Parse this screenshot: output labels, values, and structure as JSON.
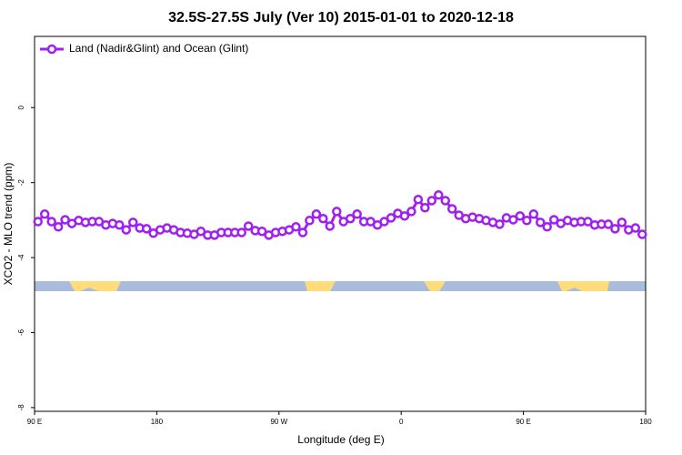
{
  "chart_data": {
    "type": "line",
    "title": "32.5S-27.5S July (Ver 10)   2015-01-01 to 2020-12-18",
    "x_label": "Longitude (deg E)",
    "y_label": "XCO2 - MLO trend (ppm)",
    "x": [
      92.5,
      97.5,
      102.5,
      107.5,
      112.5,
      117.5,
      122.5,
      127.5,
      132.5,
      137.5,
      142.5,
      147.5,
      152.5,
      157.5,
      162.5,
      167.5,
      172.5,
      177.5,
      182.5,
      187.5,
      192.5,
      197.5,
      202.5,
      207.5,
      212.5,
      217.5,
      222.5,
      227.5,
      232.5,
      237.5,
      242.5,
      247.5,
      252.5,
      257.5,
      262.5,
      267.5,
      272.5,
      277.5,
      282.5,
      287.5,
      292.5,
      297.5,
      302.5,
      307.5,
      312.5,
      317.5,
      322.5,
      327.5,
      332.5,
      337.5,
      342.5,
      347.5,
      352.5,
      357.5,
      362.5,
      367.5,
      372.5,
      377.5,
      382.5,
      387.5,
      392.5,
      397.5,
      402.5,
      407.5,
      412.5,
      417.5,
      422.5,
      427.5,
      432.5,
      437.5,
      442.5,
      447.5,
      452.5,
      457.5,
      462.5,
      467.5,
      472.5,
      477.5,
      482.5,
      487.5,
      492.5,
      497.5,
      502.5,
      507.5,
      512.5,
      517.5,
      522.5,
      527.5,
      532.5,
      537.5
    ],
    "series": [
      {
        "name": "Land (Nadir&Glint) and Ocean (Glint)",
        "color": "#a020f0",
        "values": [
          -3.04,
          -2.84,
          -3.04,
          -3.18,
          -2.99,
          -3.09,
          -3.01,
          -3.06,
          -3.04,
          -3.04,
          -3.13,
          -3.09,
          -3.13,
          -3.26,
          -3.06,
          -3.21,
          -3.23,
          -3.35,
          -3.26,
          -3.21,
          -3.26,
          -3.33,
          -3.35,
          -3.38,
          -3.3,
          -3.4,
          -3.4,
          -3.33,
          -3.33,
          -3.33,
          -3.33,
          -3.16,
          -3.28,
          -3.3,
          -3.4,
          -3.33,
          -3.3,
          -3.26,
          -3.18,
          -3.33,
          -3.01,
          -2.84,
          -2.96,
          -3.16,
          -2.77,
          -3.04,
          -2.96,
          -2.84,
          -3.04,
          -3.04,
          -3.13,
          -3.04,
          -2.94,
          -2.82,
          -2.89,
          -2.77,
          -2.45,
          -2.67,
          -2.48,
          -2.33,
          -2.48,
          -2.7,
          -2.87,
          -2.96,
          -2.92,
          -2.96,
          -3.01,
          -3.06,
          -3.11,
          -2.94,
          -2.99,
          -2.89,
          -3.01,
          -2.84,
          -3.06,
          -3.18,
          -2.99,
          -3.09,
          -3.01,
          -3.06,
          -3.04,
          -3.04,
          -3.13,
          -3.11,
          -3.11,
          -3.23,
          -3.06,
          -3.26,
          -3.21,
          -3.38
        ]
      }
    ],
    "xlim": [
      90,
      540
    ],
    "xticks": [
      {
        "value": 90,
        "label": "90 E"
      },
      {
        "value": 180,
        "label": "180"
      },
      {
        "value": 270,
        "label": "90 W"
      },
      {
        "value": 360,
        "label": "0"
      },
      {
        "value": 450,
        "label": "90 E"
      },
      {
        "value": 540,
        "label": "180"
      }
    ],
    "ylim": [
      -8.1,
      1.9
    ],
    "yticks": [
      0,
      -2,
      -4,
      -6,
      -8
    ],
    "legend": "top-left",
    "grid": false
  }
}
